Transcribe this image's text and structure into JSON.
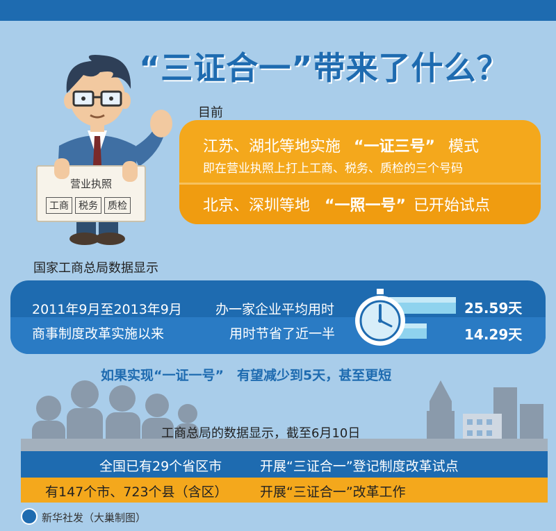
{
  "title": "“三证合一”带来了什么？",
  "person": {
    "sign_title": "营业执照",
    "sign_items": [
      "工商",
      "税务",
      "质检"
    ]
  },
  "current": {
    "label": "目前",
    "mode_prefix": "江苏、湖北等地实施",
    "mode_highlight": "“一证三号”",
    "mode_suffix": "模式",
    "mode_detail": "即在营业执照上打上工商、税务、质检的三个号码",
    "trial_prefix": "北京、深圳等地",
    "trial_highlight": "“一照一号”",
    "trial_suffix": "已开始试点"
  },
  "saic": {
    "label": "国家工商总局数据显示",
    "period": "2011年9月至2013年9月",
    "since": "商事制度改革实施以来",
    "avg_label": "办一家企业平均用时",
    "saved_label": "用时节省了近一半",
    "before_days": "25.59天",
    "after_days": "14.29天",
    "bar_before_fraction": 1.0,
    "bar_after_fraction": 0.56
  },
  "goal": "如果实现“一证一号”　有望减少到5天，甚至更短",
  "june": {
    "label": "工商总局的数据显示，截至6月10日",
    "row1_left": "全国已有29个省区市",
    "row1_right": "开展“三证合一”登记制度改革试点",
    "row2_left": "有147个市、723个县（含区）",
    "row2_right": "开展“三证合一”改革工作"
  },
  "credit": "新华社发（大巢制图）",
  "colors": {
    "background": "#a9cdea",
    "brand_blue": "#1e6bb0",
    "orange": "#f4a81c",
    "bar": "#8fd3ee"
  }
}
